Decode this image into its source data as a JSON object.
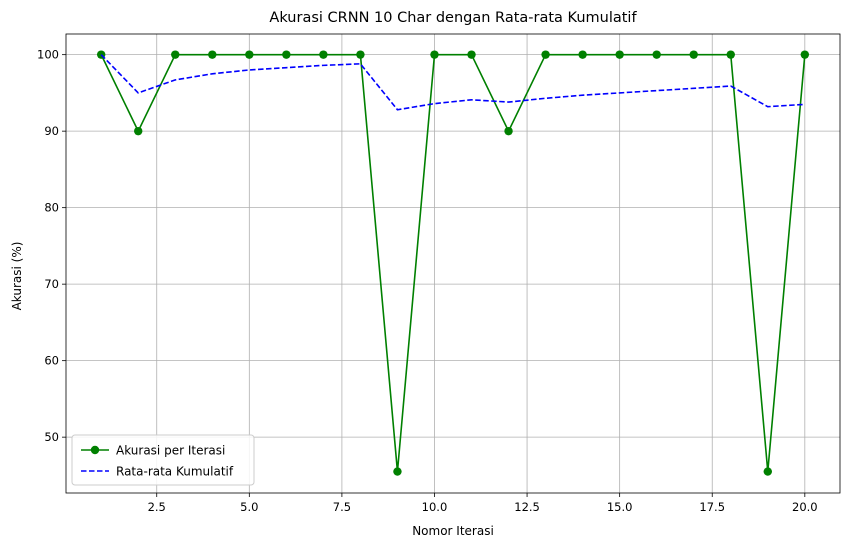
{
  "chart_data": {
    "type": "line",
    "title": "Akurasi CRNN 10 Char dengan Rata-rata Kumulatif",
    "xlabel": "Nomor Iterasi",
    "ylabel": "Akurasi (%)",
    "xlim": [
      0.05,
      20.95
    ],
    "ylim": [
      42.7,
      102.7
    ],
    "xticks": [
      2.5,
      5.0,
      7.5,
      10.0,
      12.5,
      15.0,
      17.5,
      20.0
    ],
    "xtick_labels": [
      "2.5",
      "5.0",
      "7.5",
      "10.0",
      "12.5",
      "15.0",
      "17.5",
      "20.0"
    ],
    "yticks": [
      50,
      60,
      70,
      80,
      90,
      100
    ],
    "ytick_labels": [
      "50",
      "60",
      "70",
      "80",
      "90",
      "100"
    ],
    "grid": true,
    "legend_position": "lower-left",
    "x": [
      1,
      2,
      3,
      4,
      5,
      6,
      7,
      8,
      9,
      10,
      11,
      12,
      13,
      14,
      15,
      16,
      17,
      18,
      19,
      20
    ],
    "series": [
      {
        "name": "Akurasi per Iterasi",
        "style": "solid-with-circle-markers",
        "color": "#008000",
        "values": [
          100,
          90,
          100,
          100,
          100,
          100,
          100,
          100,
          45.5,
          100,
          100,
          90,
          100,
          100,
          100,
          100,
          100,
          100,
          45.5,
          100
        ]
      },
      {
        "name": "Rata-rata Kumulatif",
        "style": "dashed",
        "color": "#0000ff",
        "values": [
          100,
          95,
          96.7,
          97.5,
          98,
          98.3,
          98.6,
          98.8,
          92.8,
          93.6,
          94.1,
          93.8,
          94.3,
          94.7,
          95.0,
          95.3,
          95.6,
          95.9,
          93.2,
          93.5
        ]
      }
    ]
  }
}
